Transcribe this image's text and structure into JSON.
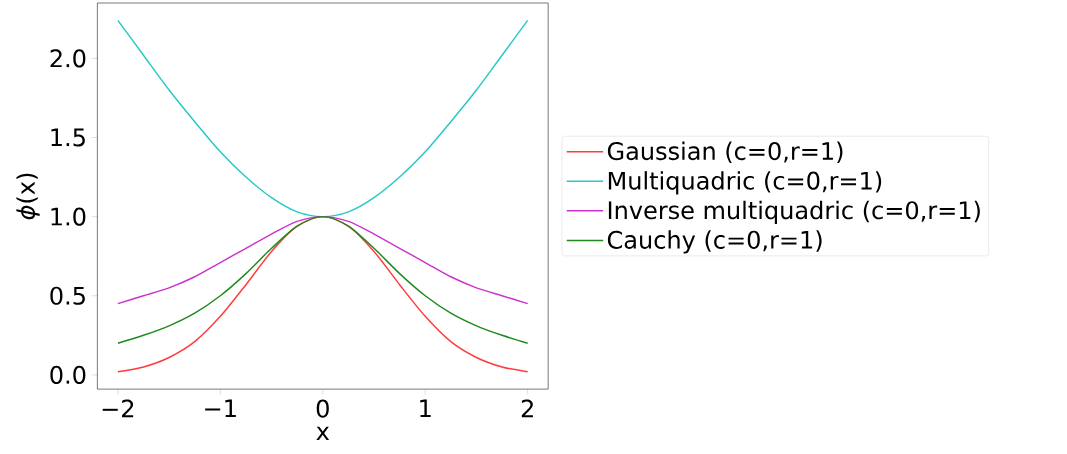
{
  "chart_data": {
    "type": "line",
    "xlabel": "x",
    "ylabel": "*ϕ*(x)",
    "x": [
      -2,
      -1.75,
      -1.5,
      -1.25,
      -1,
      -0.75,
      -0.5,
      -0.25,
      0,
      0.25,
      0.5,
      0.75,
      1,
      1.25,
      1.5,
      1.75,
      2
    ],
    "series": [
      {
        "name": "Gaussian (c=0,r=1)",
        "color": "#ff3b3b",
        "values": [
          0.02,
          0.05,
          0.11,
          0.21,
          0.37,
          0.57,
          0.78,
          0.94,
          1.0,
          0.94,
          0.78,
          0.57,
          0.37,
          0.21,
          0.11,
          0.05,
          0.02
        ]
      },
      {
        "name": "Multiquadric (c=0,r=1)",
        "color": "#27c8c8",
        "values": [
          2.24,
          2.02,
          1.8,
          1.6,
          1.41,
          1.25,
          1.12,
          1.03,
          1.0,
          1.03,
          1.12,
          1.25,
          1.41,
          1.6,
          1.8,
          2.02,
          2.24
        ]
      },
      {
        "name": "Inverse multiquadric (c=0,r=1)",
        "color": "#cc33cc",
        "values": [
          0.45,
          0.5,
          0.55,
          0.62,
          0.71,
          0.8,
          0.89,
          0.97,
          1.0,
          0.97,
          0.89,
          0.8,
          0.71,
          0.62,
          0.55,
          0.5,
          0.45
        ]
      },
      {
        "name": "Cauchy (c=0,r=1)",
        "color": "#1f8a1f",
        "values": [
          0.2,
          0.25,
          0.31,
          0.39,
          0.5,
          0.64,
          0.8,
          0.94,
          1.0,
          0.94,
          0.8,
          0.64,
          0.5,
          0.39,
          0.31,
          0.25,
          0.2
        ]
      }
    ],
    "xlim": [
      -2.2,
      2.2
    ],
    "ylim": [
      -0.09,
      2.35
    ],
    "xticks": [
      {
        "value": -2,
        "label": "−2"
      },
      {
        "value": -1,
        "label": "−1"
      },
      0,
      1,
      2
    ],
    "yticks": [
      {
        "value": 0,
        "label": "0.0"
      },
      {
        "value": 0.5,
        "label": "0.5"
      },
      {
        "value": 1,
        "label": "1.0"
      },
      {
        "value": 1.5,
        "label": "1.5"
      },
      {
        "value": 2,
        "label": "2.0"
      }
    ],
    "grid": false,
    "legend": "right",
    "line_style": "solid"
  }
}
